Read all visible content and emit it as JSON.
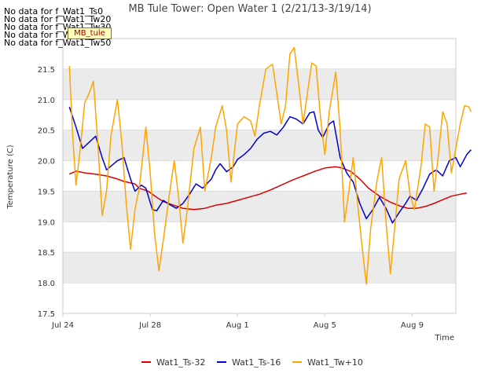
{
  "notices": [
    "No data for f_Wat1_Ts0",
    "No data for f_Wat1_Tw20",
    "No data for f_Wat1_Tw30",
    "No data for f_Wat1_Tw40",
    "No data for f_Wat1_Tw50"
  ],
  "site_tag": "MB_tule",
  "colors": {
    "Wat1_Ts-32": "#dd0000",
    "Wat1_Ts-16": "#0000cc",
    "Wat1_Tw+10": "#ffa500",
    "band": "#ebebeb",
    "grid": "#dcdcdc"
  },
  "chart_data": {
    "type": "line",
    "title": "MB Tule Tower: Open Water 1 (2/21/13-3/19/14)",
    "xlabel": "Time",
    "ylabel": "Temperature (C)",
    "ylim": [
      17.5,
      22.0
    ],
    "xlim_days": [
      0,
      18
    ],
    "x_ticks": [
      {
        "day": 0,
        "label": "Jul 24"
      },
      {
        "day": 4,
        "label": "Jul 28"
      },
      {
        "day": 8,
        "label": "Aug 1"
      },
      {
        "day": 12,
        "label": "Aug 5"
      },
      {
        "day": 16,
        "label": "Aug 9"
      }
    ],
    "y_ticks": [
      "17.5",
      "18.0",
      "18.5",
      "19.0",
      "19.5",
      "20.0",
      "20.5",
      "21.0",
      "21.5"
    ],
    "grid": true,
    "legend_position": "bottom",
    "series": [
      {
        "name": "Wat1_Ts-32",
        "points": [
          [
            0.3,
            19.78
          ],
          [
            0.6,
            19.83
          ],
          [
            1,
            19.8
          ],
          [
            1.5,
            19.78
          ],
          [
            2,
            19.75
          ],
          [
            2.5,
            19.7
          ],
          [
            2.8,
            19.66
          ],
          [
            3.3,
            19.62
          ],
          [
            3.5,
            19.55
          ],
          [
            3.9,
            19.5
          ],
          [
            4.3,
            19.4
          ],
          [
            4.6,
            19.33
          ],
          [
            5,
            19.28
          ],
          [
            5.5,
            19.22
          ],
          [
            6,
            19.2
          ],
          [
            6.5,
            19.22
          ],
          [
            7,
            19.27
          ],
          [
            7.5,
            19.3
          ],
          [
            8,
            19.35
          ],
          [
            8.5,
            19.4
          ],
          [
            9,
            19.45
          ],
          [
            9.5,
            19.52
          ],
          [
            10,
            19.6
          ],
          [
            10.5,
            19.68
          ],
          [
            11,
            19.75
          ],
          [
            11.5,
            19.82
          ],
          [
            12,
            19.88
          ],
          [
            12.5,
            19.9
          ],
          [
            12.8,
            19.88
          ],
          [
            13.2,
            19.82
          ],
          [
            13.6,
            19.7
          ],
          [
            14,
            19.55
          ],
          [
            14.5,
            19.42
          ],
          [
            15,
            19.32
          ],
          [
            15.5,
            19.25
          ],
          [
            15.8,
            19.22
          ],
          [
            16.2,
            19.22
          ],
          [
            16.6,
            19.25
          ],
          [
            17,
            19.3
          ],
          [
            17.4,
            19.36
          ],
          [
            17.8,
            19.42
          ],
          [
            18.2,
            19.45
          ],
          [
            18.5,
            19.47
          ]
        ]
      },
      {
        "name": "Wat1_Ts-16",
        "points": [
          [
            0.3,
            20.88
          ],
          [
            0.6,
            20.55
          ],
          [
            0.9,
            20.2
          ],
          [
            1.2,
            20.3
          ],
          [
            1.5,
            20.4
          ],
          [
            1.8,
            20.05
          ],
          [
            2,
            19.85
          ],
          [
            2.5,
            20.0
          ],
          [
            2.8,
            20.05
          ],
          [
            3.1,
            19.7
          ],
          [
            3.3,
            19.5
          ],
          [
            3.6,
            19.6
          ],
          [
            3.8,
            19.55
          ],
          [
            4.1,
            19.2
          ],
          [
            4.3,
            19.18
          ],
          [
            4.6,
            19.35
          ],
          [
            4.9,
            19.28
          ],
          [
            5.2,
            19.22
          ],
          [
            5.5,
            19.3
          ],
          [
            5.8,
            19.45
          ],
          [
            6.1,
            19.62
          ],
          [
            6.4,
            19.55
          ],
          [
            6.8,
            19.7
          ],
          [
            7,
            19.85
          ],
          [
            7.2,
            19.95
          ],
          [
            7.5,
            19.82
          ],
          [
            7.8,
            19.9
          ],
          [
            8,
            20.02
          ],
          [
            8.3,
            20.1
          ],
          [
            8.6,
            20.2
          ],
          [
            8.9,
            20.35
          ],
          [
            9.2,
            20.45
          ],
          [
            9.5,
            20.48
          ],
          [
            9.8,
            20.42
          ],
          [
            10.1,
            20.55
          ],
          [
            10.4,
            20.72
          ],
          [
            10.7,
            20.68
          ],
          [
            11,
            20.6
          ],
          [
            11.3,
            20.78
          ],
          [
            11.5,
            20.8
          ],
          [
            11.7,
            20.5
          ],
          [
            11.9,
            20.38
          ],
          [
            12.2,
            20.6
          ],
          [
            12.4,
            20.65
          ],
          [
            12.7,
            20.05
          ],
          [
            13,
            19.8
          ],
          [
            13.3,
            19.65
          ],
          [
            13.6,
            19.3
          ],
          [
            13.9,
            19.05
          ],
          [
            14.2,
            19.2
          ],
          [
            14.5,
            19.4
          ],
          [
            14.8,
            19.22
          ],
          [
            15.1,
            18.98
          ],
          [
            15.4,
            19.15
          ],
          [
            15.7,
            19.3
          ],
          [
            15.9,
            19.42
          ],
          [
            16.2,
            19.35
          ],
          [
            16.5,
            19.55
          ],
          [
            16.8,
            19.78
          ],
          [
            17.1,
            19.85
          ],
          [
            17.4,
            19.75
          ],
          [
            17.7,
            20.0
          ],
          [
            18,
            20.05
          ],
          [
            18.2,
            19.9
          ],
          [
            18.5,
            20.1
          ],
          [
            18.7,
            20.18
          ]
        ]
      },
      {
        "name": "Wat1_Tw+10",
        "points": [
          [
            0.3,
            21.55
          ],
          [
            0.45,
            20.4
          ],
          [
            0.6,
            19.6
          ],
          [
            0.8,
            20.2
          ],
          [
            1,
            20.95
          ],
          [
            1.2,
            21.1
          ],
          [
            1.4,
            21.3
          ],
          [
            1.6,
            20.3
          ],
          [
            1.8,
            19.1
          ],
          [
            2,
            19.5
          ],
          [
            2.2,
            20.4
          ],
          [
            2.5,
            21.0
          ],
          [
            2.7,
            20.3
          ],
          [
            2.9,
            19.3
          ],
          [
            3.1,
            18.55
          ],
          [
            3.3,
            19.2
          ],
          [
            3.5,
            19.55
          ],
          [
            3.8,
            20.55
          ],
          [
            4.0,
            19.8
          ],
          [
            4.2,
            18.8
          ],
          [
            4.4,
            18.2
          ],
          [
            4.6,
            18.7
          ],
          [
            4.9,
            19.5
          ],
          [
            5.1,
            20.0
          ],
          [
            5.3,
            19.4
          ],
          [
            5.5,
            18.65
          ],
          [
            5.7,
            19.2
          ],
          [
            6,
            20.2
          ],
          [
            6.3,
            20.55
          ],
          [
            6.5,
            19.5
          ],
          [
            6.8,
            20.05
          ],
          [
            7,
            20.55
          ],
          [
            7.3,
            20.9
          ],
          [
            7.5,
            20.5
          ],
          [
            7.7,
            19.65
          ],
          [
            8,
            20.6
          ],
          [
            8.3,
            20.72
          ],
          [
            8.6,
            20.65
          ],
          [
            8.8,
            20.4
          ],
          [
            9,
            20.9
          ],
          [
            9.3,
            21.5
          ],
          [
            9.6,
            21.58
          ],
          [
            9.8,
            21.1
          ],
          [
            10,
            20.6
          ],
          [
            10.2,
            20.9
          ],
          [
            10.4,
            21.75
          ],
          [
            10.6,
            21.85
          ],
          [
            10.8,
            21.25
          ],
          [
            11,
            20.6
          ],
          [
            11.2,
            21.1
          ],
          [
            11.4,
            21.6
          ],
          [
            11.6,
            21.55
          ],
          [
            11.8,
            20.7
          ],
          [
            12,
            20.1
          ],
          [
            12.2,
            20.8
          ],
          [
            12.5,
            21.45
          ],
          [
            12.7,
            20.5
          ],
          [
            12.9,
            19.0
          ],
          [
            13.1,
            19.5
          ],
          [
            13.3,
            20.05
          ],
          [
            13.5,
            19.3
          ],
          [
            13.7,
            18.6
          ],
          [
            13.9,
            17.98
          ],
          [
            14.1,
            18.9
          ],
          [
            14.4,
            19.7
          ],
          [
            14.6,
            20.05
          ],
          [
            14.8,
            19.0
          ],
          [
            15,
            18.15
          ],
          [
            15.2,
            18.9
          ],
          [
            15.4,
            19.7
          ],
          [
            15.7,
            20.0
          ],
          [
            15.9,
            19.45
          ],
          [
            16.1,
            19.2
          ],
          [
            16.4,
            19.9
          ],
          [
            16.6,
            20.6
          ],
          [
            16.8,
            20.55
          ],
          [
            17,
            19.5
          ],
          [
            17.2,
            20.1
          ],
          [
            17.4,
            20.8
          ],
          [
            17.6,
            20.6
          ],
          [
            17.8,
            19.8
          ],
          [
            18,
            20.2
          ],
          [
            18.2,
            20.6
          ],
          [
            18.4,
            20.9
          ],
          [
            18.6,
            20.88
          ],
          [
            18.7,
            20.8
          ]
        ]
      }
    ]
  }
}
